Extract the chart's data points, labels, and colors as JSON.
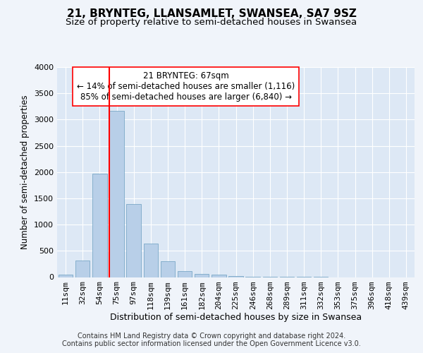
{
  "title": "21, BRYNTEG, LLANSAMLET, SWANSEA, SA7 9SZ",
  "subtitle": "Size of property relative to semi-detached houses in Swansea",
  "xlabel": "Distribution of semi-detached houses by size in Swansea",
  "ylabel": "Number of semi-detached properties",
  "categories": [
    "11sqm",
    "32sqm",
    "54sqm",
    "75sqm",
    "97sqm",
    "118sqm",
    "139sqm",
    "161sqm",
    "182sqm",
    "204sqm",
    "225sqm",
    "246sqm",
    "268sqm",
    "289sqm",
    "311sqm",
    "332sqm",
    "353sqm",
    "375sqm",
    "396sqm",
    "418sqm",
    "439sqm"
  ],
  "values": [
    50,
    320,
    1970,
    3160,
    1390,
    640,
    300,
    115,
    65,
    45,
    20,
    10,
    5,
    2,
    1,
    1,
    0,
    0,
    0,
    0,
    0
  ],
  "bar_color": "#b8cfe8",
  "bar_edge_color": "#6a9ec0",
  "vline_x_index": 3,
  "vline_color": "red",
  "annotation_text": "21 BRYNTEG: 67sqm\n← 14% of semi-detached houses are smaller (1,116)\n85% of semi-detached houses are larger (6,840) →",
  "annotation_box_color": "white",
  "annotation_box_edge": "red",
  "ylim": [
    0,
    4000
  ],
  "yticks": [
    0,
    500,
    1000,
    1500,
    2000,
    2500,
    3000,
    3500,
    4000
  ],
  "footer1": "Contains HM Land Registry data © Crown copyright and database right 2024.",
  "footer2": "Contains public sector information licensed under the Open Government Licence v3.0.",
  "fig_background_color": "#f0f4fa",
  "plot_background": "#dde8f5",
  "grid_color": "white",
  "title_fontsize": 11,
  "subtitle_fontsize": 9.5,
  "xlabel_fontsize": 9,
  "ylabel_fontsize": 8.5,
  "tick_fontsize": 8,
  "annotation_fontsize": 8.5,
  "footer_fontsize": 7
}
